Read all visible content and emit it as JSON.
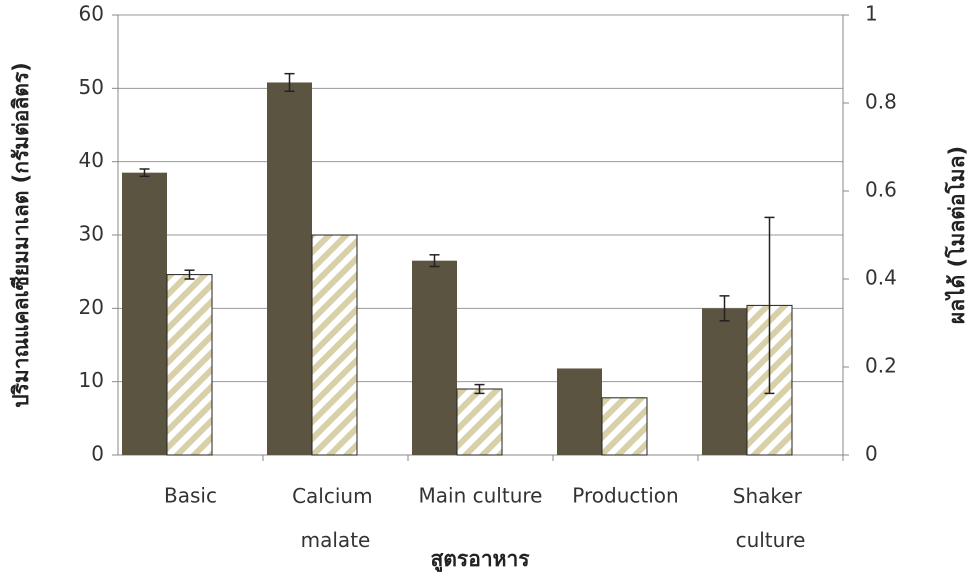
{
  "chart_data": {
    "type": "bar",
    "x_label": "สูตรอาหาร",
    "y_label": "ปริมาณแคลเซียมมาเลต (กรัมต่อลิตร)",
    "y2_label": "ผลได้ (โมลต่อโมล)",
    "categories": [
      "Basic",
      "Calcium malate",
      "Main culture",
      "Production",
      "Shaker culture"
    ],
    "ylim": [
      0,
      60
    ],
    "yticks": [
      0,
      10,
      20,
      30,
      40,
      50,
      60
    ],
    "y2lim": [
      0,
      1
    ],
    "y2ticks": [
      0,
      0.2,
      0.4,
      0.6,
      0.8,
      1
    ],
    "grid": true,
    "series": [
      {
        "color": "#5b5441",
        "values": [
          38.5,
          50.8,
          26.5,
          11.8,
          20
        ],
        "errors": [
          0.5,
          1.2,
          0.8,
          0,
          1.7
        ]
      },
      {
        "color": "#d8d0a8",
        "axis": "y2",
        "hatch": true,
        "values": [
          0.41,
          0.5,
          0.15,
          0.13,
          0.34
        ],
        "errors": [
          0.01,
          0,
          0.01,
          0,
          0.2
        ]
      }
    ]
  }
}
